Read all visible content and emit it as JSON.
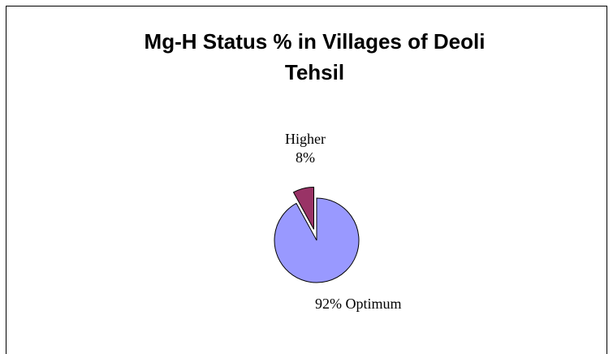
{
  "chart_data": {
    "type": "pie",
    "title": "Mg-H Status % in Villages of Deoli Tehsil",
    "categories": [
      "Higher",
      "Optimum"
    ],
    "values": [
      8,
      92
    ],
    "value_labels": [
      "8%",
      "92%"
    ],
    "colors": [
      "#993366",
      "#9999ff"
    ]
  }
}
